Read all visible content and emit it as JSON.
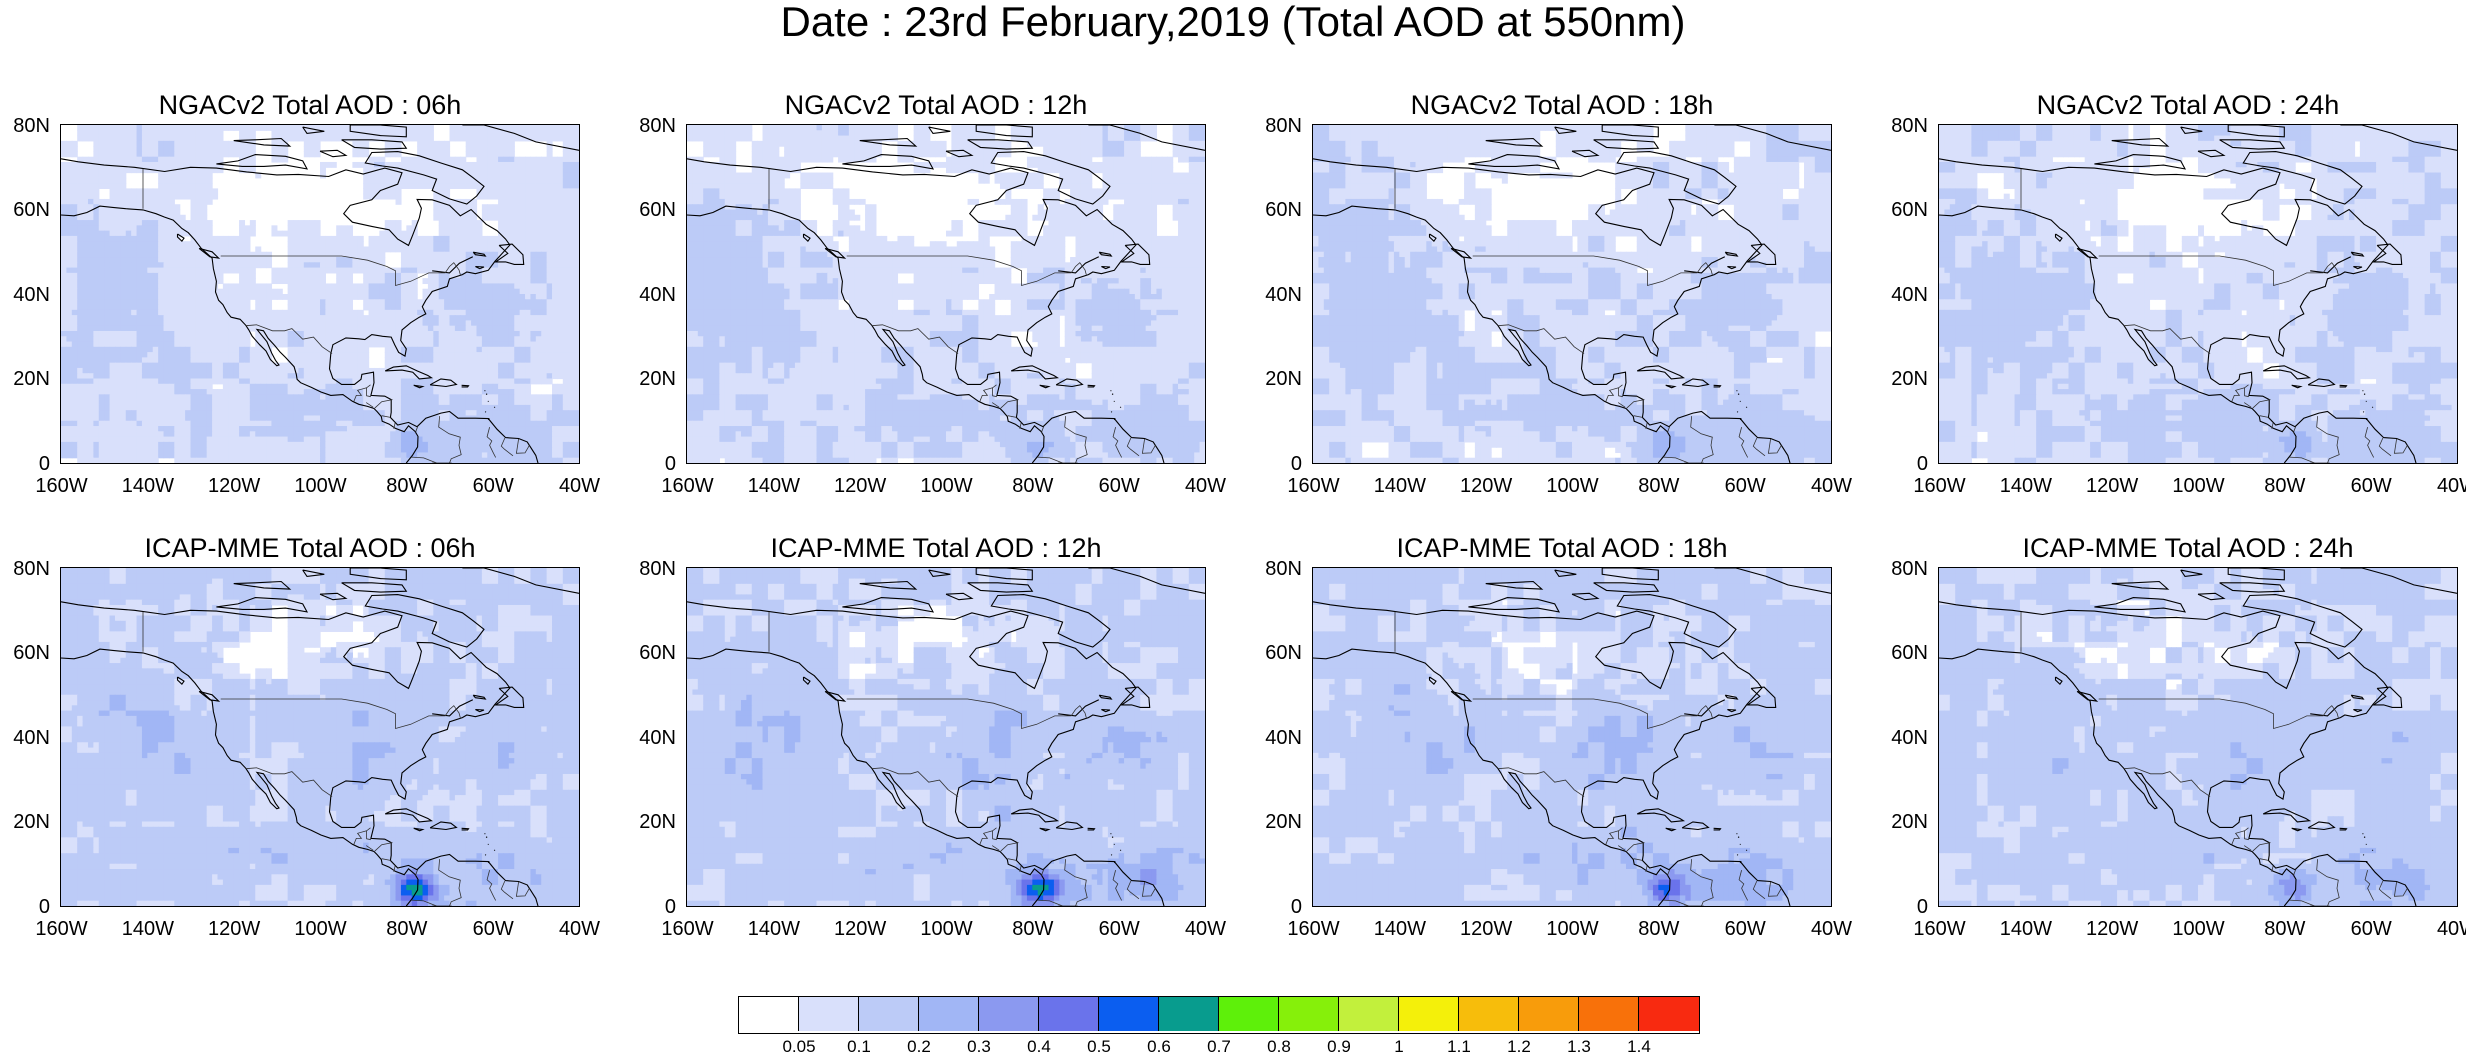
{
  "title": "Date : 23rd February,2019 (Total AOD at 550nm)",
  "chart_data": {
    "type": "heatmap",
    "variable": "Total AOD at 550nm",
    "lat_ticks": [
      "80N",
      "60N",
      "40N",
      "20N",
      "0"
    ],
    "lon_ticks": [
      "160W",
      "140W",
      "120W",
      "100W",
      "80W",
      "60W",
      "40W"
    ],
    "lat_range": [
      0,
      80
    ],
    "lon_range": [
      -160,
      -40
    ],
    "panels": [
      {
        "title": "NGACv2 Total AOD : 06h",
        "model": "NGACv2",
        "hour": "06h",
        "mean_aod": 0.08,
        "hotspot_max": 0.3
      },
      {
        "title": "NGACv2 Total AOD : 12h",
        "model": "NGACv2",
        "hour": "12h",
        "mean_aod": 0.08,
        "hotspot_max": 0.3
      },
      {
        "title": "NGACv2 Total AOD : 18h",
        "model": "NGACv2",
        "hour": "18h",
        "mean_aod": 0.09,
        "hotspot_max": 0.3
      },
      {
        "title": "NGACv2 Total AOD : 24h",
        "model": "NGACv2",
        "hour": "24h",
        "mean_aod": 0.09,
        "hotspot_max": 0.3
      },
      {
        "title": "ICAP-MME Total AOD : 06h",
        "model": "ICAP-MME",
        "hour": "06h",
        "mean_aod": 0.12,
        "hotspot_max": 0.7
      },
      {
        "title": "ICAP-MME Total AOD : 12h",
        "model": "ICAP-MME",
        "hour": "12h",
        "mean_aod": 0.13,
        "hotspot_max": 0.7
      },
      {
        "title": "ICAP-MME Total AOD : 18h",
        "model": "ICAP-MME",
        "hour": "18h",
        "mean_aod": 0.13,
        "hotspot_max": 0.5
      },
      {
        "title": "ICAP-MME Total AOD : 24h",
        "model": "ICAP-MME",
        "hour": "24h",
        "mean_aod": 0.12,
        "hotspot_max": 0.4
      }
    ],
    "colorbar": {
      "labels": [
        "0.05",
        "0.1",
        "0.2",
        "0.3",
        "0.4",
        "0.5",
        "0.6",
        "0.7",
        "0.8",
        "0.9",
        "1",
        "1.1",
        "1.2",
        "1.3",
        "1.4"
      ],
      "colors": [
        "#ffffff",
        "#d9e0fb",
        "#bccbf7",
        "#a1b6f5",
        "#8b99f0",
        "#6a73eb",
        "#0b5ef0",
        "#089c8e",
        "#5ef00a",
        "#86f00a",
        "#c2f03c",
        "#f4f00a",
        "#f7bd0b",
        "#f89c0b",
        "#f8710a",
        "#f82a10"
      ]
    }
  }
}
